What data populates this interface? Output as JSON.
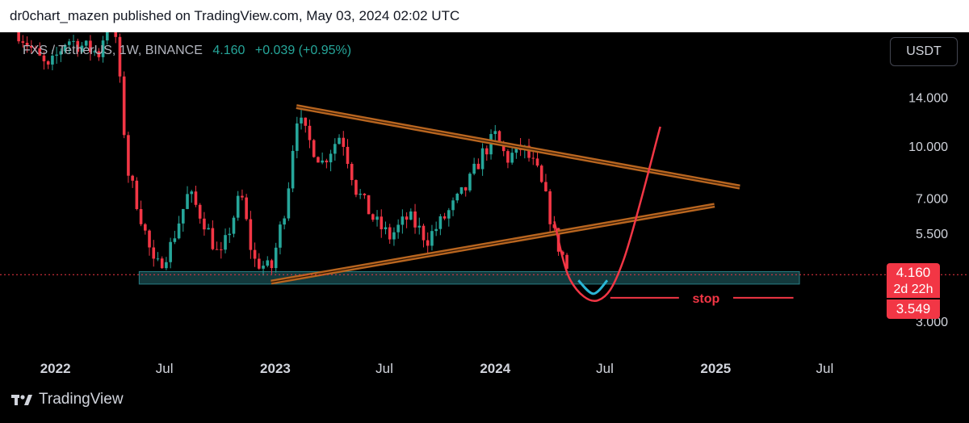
{
  "header": {
    "text": "dr0chart_mazen published on TradingView.com, May 03, 2024 02:02 UTC"
  },
  "symbol": {
    "name": "FXS / TetherUS, 1W, BINANCE",
    "last": "4.160",
    "change": "+0.039 (+0.95%)"
  },
  "currency_button": "USDT",
  "price_tags": {
    "last": "4.160",
    "countdown": "2d 22h",
    "stop": "3.549"
  },
  "footer": {
    "brand": "TradingView"
  },
  "colors": {
    "up": "#26a69a",
    "down": "#f23645",
    "trendline": "#b8651f",
    "zone": "#2a7f86",
    "projection": "#f23645",
    "cup": "#2ab6d6"
  },
  "chart_data": {
    "type": "candlestick",
    "timeframe": "1W",
    "y_scale": "log",
    "ylim": [
      2.6,
      22
    ],
    "xlim": [
      "2021-10-01",
      "2025-10-01"
    ],
    "y_ticks": [
      "14.000",
      "10.000",
      "7.000",
      "5.500",
      "3.000"
    ],
    "x_ticks": [
      {
        "label": "2022",
        "date": "2022-01-01",
        "bold": true
      },
      {
        "label": "Jul",
        "date": "2022-07-01",
        "bold": false
      },
      {
        "label": "2023",
        "date": "2023-01-01",
        "bold": true
      },
      {
        "label": "Jul",
        "date": "2023-07-01",
        "bold": false
      },
      {
        "label": "2024",
        "date": "2024-01-01",
        "bold": true
      },
      {
        "label": "Jul",
        "date": "2024-07-01",
        "bold": false
      },
      {
        "label": "2025",
        "date": "2025-01-01",
        "bold": true
      },
      {
        "label": "Jul",
        "date": "2025-07-01",
        "bold": false
      }
    ],
    "price_path": [
      [
        "2021-11-01",
        22
      ],
      [
        "2021-12-20",
        17
      ],
      [
        "2022-01-20",
        21
      ],
      [
        "2022-03-15",
        19
      ],
      [
        "2022-04-05",
        28
      ],
      [
        "2022-05-01",
        8.5
      ],
      [
        "2022-05-20",
        6.5
      ],
      [
        "2022-06-15",
        4.3
      ],
      [
        "2022-07-10",
        5.0
      ],
      [
        "2022-08-10",
        7.3
      ],
      [
        "2022-09-05",
        6.0
      ],
      [
        "2022-10-01",
        4.6
      ],
      [
        "2022-11-05",
        7.3
      ],
      [
        "2022-11-25",
        4.6
      ],
      [
        "2022-12-25",
        4.3
      ],
      [
        "2023-01-20",
        7.0
      ],
      [
        "2023-02-05",
        12.5
      ],
      [
        "2023-02-25",
        10.5
      ],
      [
        "2023-03-20",
        9.0
      ],
      [
        "2023-04-20",
        11.0
      ],
      [
        "2023-05-15",
        7.5
      ],
      [
        "2023-06-15",
        6.0
      ],
      [
        "2023-07-10",
        5.4
      ],
      [
        "2023-08-10",
        6.2
      ],
      [
        "2023-09-10",
        5.3
      ],
      [
        "2023-10-10",
        6.2
      ],
      [
        "2023-11-15",
        7.6
      ],
      [
        "2023-12-10",
        9.5
      ],
      [
        "2024-01-01",
        10.8
      ],
      [
        "2024-01-20",
        9.2
      ],
      [
        "2024-02-15",
        10.0
      ],
      [
        "2024-03-10",
        8.5
      ],
      [
        "2024-03-25",
        7.0
      ],
      [
        "2024-04-10",
        5.3
      ],
      [
        "2024-04-25",
        4.6
      ],
      [
        "2024-05-02",
        4.16
      ]
    ],
    "resistance_zone": [
      3.9,
      4.25
    ],
    "trendlines": [
      {
        "name": "upper",
        "from": [
          "2023-02-05",
          13.2
        ],
        "to": [
          "2025-02-10",
          7.6
        ]
      },
      {
        "name": "lower",
        "from": [
          "2022-12-25",
          3.95
        ],
        "to": [
          "2024-12-30",
          6.7
        ]
      }
    ],
    "annotations": {
      "stop_label": "stop",
      "stop_price": 3.549,
      "last_price": 4.16
    },
    "projection": {
      "path": [
        [
          "2024-04-08",
          6.0
        ],
        [
          "2024-05-05",
          4.0
        ],
        [
          "2024-06-20",
          3.49
        ],
        [
          "2024-08-01",
          4.6
        ],
        [
          "2024-10-01",
          11.5
        ]
      ]
    },
    "cup": {
      "path": [
        [
          "2024-05-18",
          4.0
        ],
        [
          "2024-06-12",
          3.65
        ],
        [
          "2024-07-05",
          4.0
        ]
      ]
    }
  }
}
